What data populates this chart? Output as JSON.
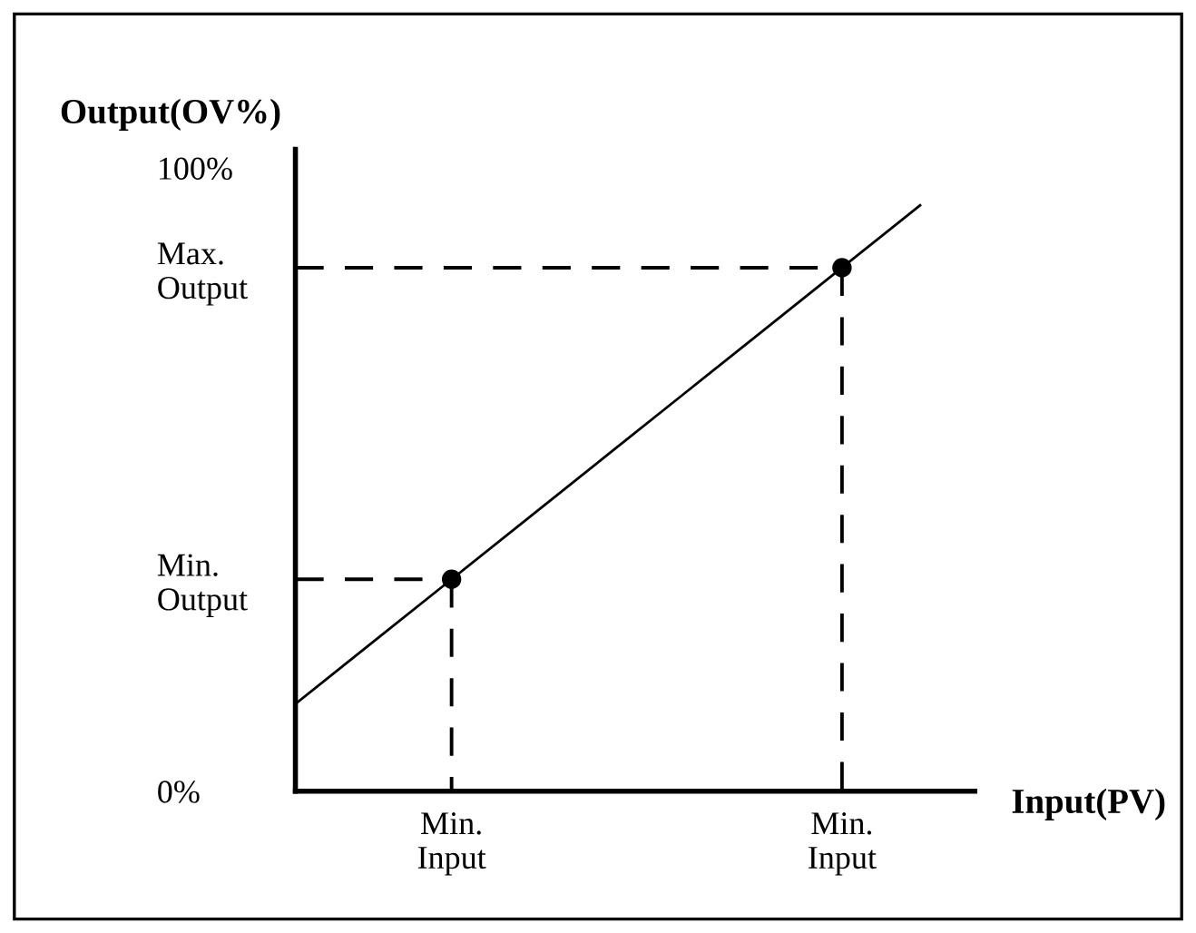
{
  "chart_data": {
    "type": "line",
    "ylabel": "Output(OV%)",
    "xlabel": "Input(PV)",
    "categories": [
      null,
      null,
      "Min.\nInput",
      null,
      null,
      null,
      null,
      "Min.\nInput",
      null
    ],
    "ylim": [
      0,
      103
    ],
    "yticks": [
      {
        "value": 0,
        "label": "0%"
      },
      {
        "value": 34,
        "label": "Min.\nOutput"
      },
      {
        "value": 84,
        "label": "Max.\nOutput"
      },
      {
        "value": 100,
        "label": "100%"
      }
    ],
    "grid": false,
    "legend": false,
    "series": [
      {
        "color": "#000000",
        "values": [
          14,
          24,
          34,
          44,
          54,
          64,
          74,
          84,
          94
        ],
        "line_style": "solid",
        "marker": "none"
      },
      {
        "type": "lollipop",
        "color": "#000000",
        "values": [
          null,
          null,
          34,
          null,
          null,
          null,
          null,
          84,
          null
        ],
        "line_style": "dashed",
        "marker": "circle"
      },
      {
        "color": "#000000",
        "values": [
          34,
          34,
          34,
          null,
          null,
          null,
          null,
          null,
          null
        ],
        "line_style": "dashed",
        "marker": "none"
      },
      {
        "color": "#000000",
        "values": [
          84,
          84,
          84,
          84,
          84,
          84,
          84,
          84,
          null
        ],
        "line_style": "dashed",
        "marker": "none"
      }
    ]
  }
}
